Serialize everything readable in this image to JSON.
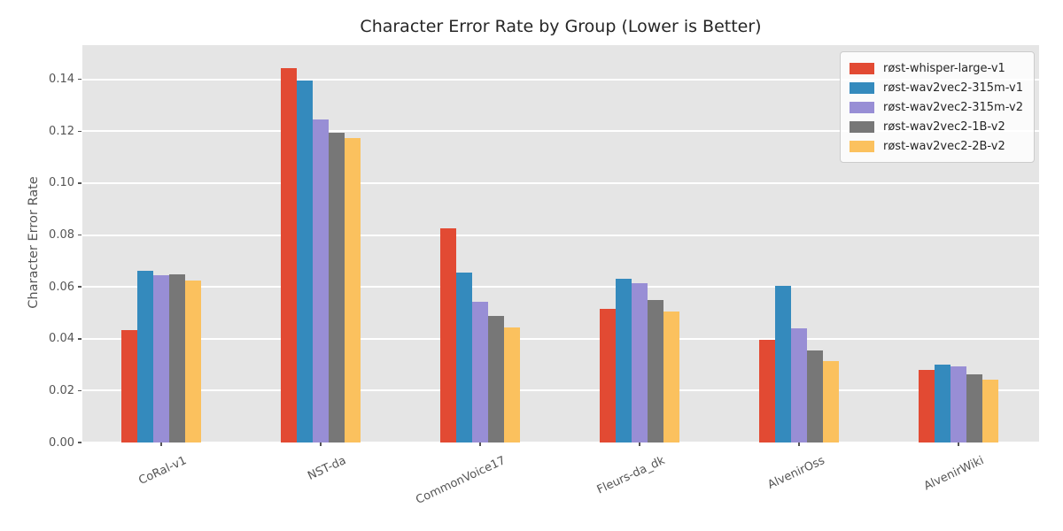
{
  "figure": {
    "background": "#ffffff",
    "plot_background": "#e5e5e5",
    "gridline_color": "#ffffff",
    "tick_text_color": "#555555",
    "title_color": "#262626"
  },
  "chart_data": {
    "type": "bar",
    "title": "Character Error Rate by Group (Lower is Better)",
    "xlabel": "",
    "ylabel": "Character Error Rate",
    "categories": [
      "CoRal-v1",
      "NST-da",
      "CommonVoice17",
      "Fleurs-da_dk",
      "AlvenirOss",
      "AlvenirWiki"
    ],
    "series": [
      {
        "name": "røst-whisper-large-v1",
        "color": "#E24A33",
        "values": [
          0.0432,
          0.1445,
          0.0826,
          0.0514,
          0.0395,
          0.0281
        ]
      },
      {
        "name": "røst-wav2vec2-315m-v1",
        "color": "#348ABD",
        "values": [
          0.0661,
          0.1395,
          0.0656,
          0.0631,
          0.0603,
          0.0301
        ]
      },
      {
        "name": "røst-wav2vec2-315m-v2",
        "color": "#988ED5",
        "values": [
          0.0646,
          0.1245,
          0.0541,
          0.0613,
          0.044,
          0.0294
        ]
      },
      {
        "name": "røst-wav2vec2-1B-v2",
        "color": "#777777",
        "values": [
          0.065,
          0.1195,
          0.0489,
          0.0551,
          0.0354,
          0.0263
        ]
      },
      {
        "name": "røst-wav2vec2-2B-v2",
        "color": "#FBC15E",
        "values": [
          0.0624,
          0.1175,
          0.0445,
          0.0506,
          0.0314,
          0.0243
        ]
      }
    ],
    "yticks": [
      0.0,
      0.02,
      0.04,
      0.06,
      0.08,
      0.1,
      0.12,
      0.14
    ],
    "ytick_labels": [
      "0.00",
      "0.02",
      "0.04",
      "0.06",
      "0.08",
      "0.10",
      "0.12",
      "0.14"
    ],
    "ylim": [
      0,
      0.1532
    ],
    "grid": true,
    "legend_position": "upper right",
    "xtick_rotation": 25
  }
}
